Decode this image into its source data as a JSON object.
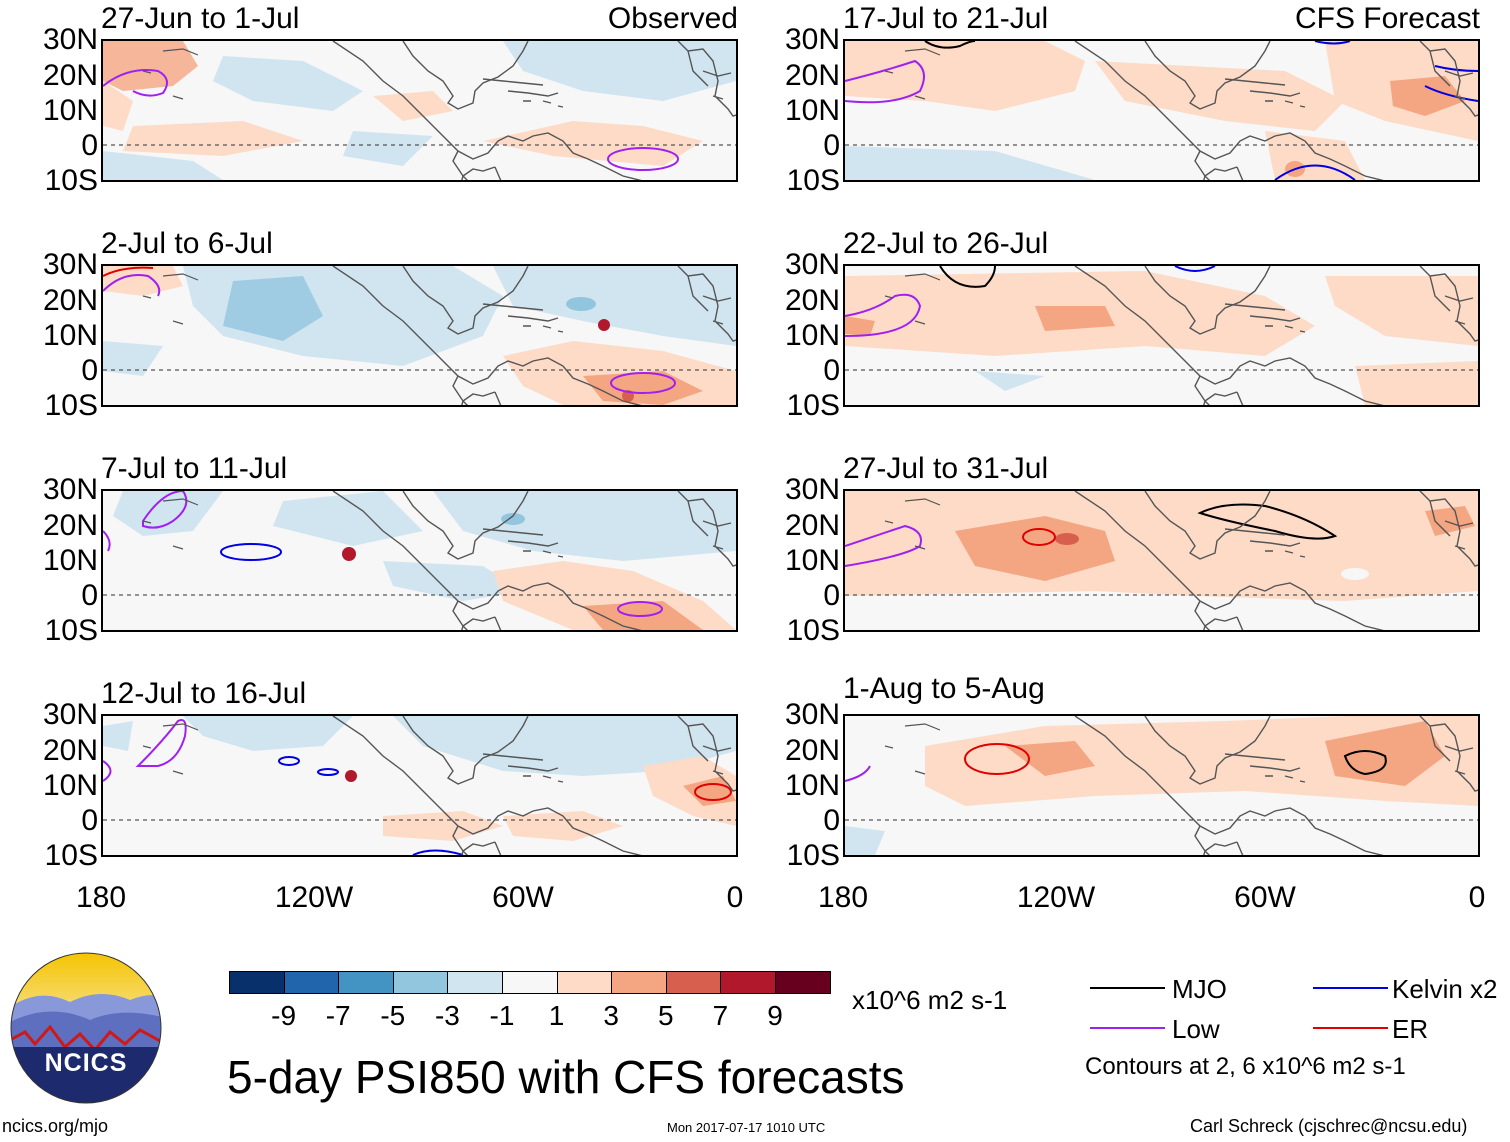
{
  "tags": {
    "observed": "Observed",
    "forecast": "CFS Forecast"
  },
  "panels_left": [
    {
      "title": "27-Jun to 1-Jul"
    },
    {
      "title": "2-Jul to 6-Jul"
    },
    {
      "title": "7-Jul to 11-Jul"
    },
    {
      "title": "12-Jul to 16-Jul"
    }
  ],
  "panels_right": [
    {
      "title": "17-Jul to 21-Jul"
    },
    {
      "title": "22-Jul to 26-Jul"
    },
    {
      "title": "27-Jul to 31-Jul"
    },
    {
      "title": "1-Aug to 5-Aug"
    }
  ],
  "lat_labels": [
    "30N",
    "20N",
    "10N",
    "0",
    "10S"
  ],
  "lon_labels": [
    "180",
    "120W",
    "60W",
    "0"
  ],
  "colorbar": {
    "colors": [
      "#08306b",
      "#2166ac",
      "#4393c3",
      "#92c5de",
      "#d1e5f0",
      "#f7f7f7",
      "#fddbc7",
      "#f4a582",
      "#d6604d",
      "#b2182b",
      "#67001f"
    ],
    "labels": [
      "-9",
      "-7",
      "-5",
      "-3",
      "-1",
      "1",
      "3",
      "5",
      "7",
      "9"
    ],
    "units": "x10^6 m2 s-1"
  },
  "legend": {
    "items": [
      {
        "label": "MJO",
        "color": "#000000"
      },
      {
        "label": "Kelvin x2",
        "color": "#0000e0"
      },
      {
        "label": "Low",
        "color": "#a020f0"
      },
      {
        "label": "ER",
        "color": "#e00000"
      }
    ],
    "note": "Contours at 2, 6 x10^6 m2 s-1"
  },
  "logo_text": "NCICS",
  "title": "5-day PSI850 with CFS forecasts",
  "footer": {
    "left": "ncics.org/mjo",
    "center": "Mon 2017-07-17 1010 UTC",
    "right": "Carl Schreck (cjschrec@ncsu.edu)"
  }
}
